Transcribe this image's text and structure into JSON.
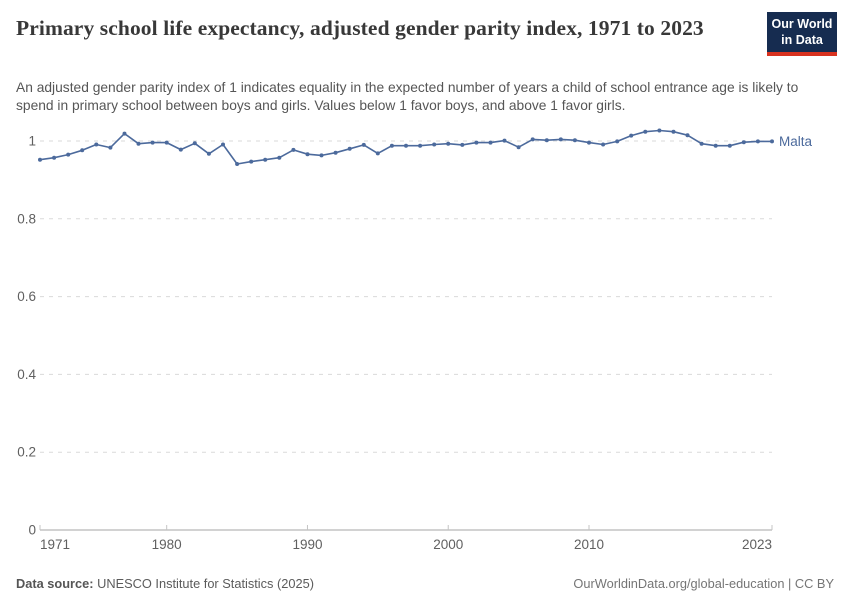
{
  "header": {
    "title": "Primary school life expectancy, adjusted gender parity index, 1971 to 2023",
    "subtitle": "An adjusted gender parity index of 1 indicates equality in the expected number of years a child of school entrance age is likely to spend in primary school between boys and girls. Values below 1 favor boys, and above 1 favor girls.",
    "logo": {
      "line1": "Our World",
      "line2": "in Data"
    }
  },
  "footer": {
    "source_label": "Data source:",
    "source_text": " UNESCO Institute for Statistics (2025)",
    "credit": "OurWorldinData.org/global-education | CC BY"
  },
  "colors": {
    "line": "#4c6a9c",
    "gridline": "#dadada",
    "axis": "#a6a6a6",
    "tick": "#c4c4c4",
    "logo_bg": "#162c50",
    "logo_bar": "#d8321f"
  },
  "chart_data": {
    "type": "line",
    "title": "Primary school life expectancy, adjusted gender parity index, 1971 to 2023",
    "xlabel": "",
    "ylabel": "",
    "x_start": 1971,
    "x_end": 2023,
    "xticks": [
      1971,
      1980,
      1990,
      2000,
      2010,
      2023
    ],
    "yticks": [
      0,
      0.2,
      0.4,
      0.6,
      0.8,
      1
    ],
    "ytick_labels": [
      "0",
      "0.2",
      "0.4",
      "0.6",
      "0.8",
      "1"
    ],
    "ylim": [
      0,
      1.05
    ],
    "grid": "dashed horizontal",
    "legend_position": "end-of-line label",
    "series": [
      {
        "name": "Malta",
        "color": "#4c6a9c",
        "years": [
          1971,
          1972,
          1973,
          1974,
          1975,
          1976,
          1977,
          1978,
          1979,
          1980,
          1981,
          1982,
          1983,
          1984,
          1985,
          1986,
          1987,
          1988,
          1989,
          1990,
          1991,
          1992,
          1993,
          1994,
          1995,
          1996,
          1997,
          1998,
          1999,
          2000,
          2001,
          2002,
          2003,
          2004,
          2005,
          2006,
          2007,
          2008,
          2009,
          2010,
          2011,
          2012,
          2013,
          2014,
          2015,
          2016,
          2017,
          2018,
          2019,
          2020,
          2021,
          2022,
          2023
        ],
        "values": [
          0.952,
          0.957,
          0.965,
          0.976,
          0.991,
          0.983,
          1.019,
          0.993,
          0.996,
          0.996,
          0.978,
          0.994,
          0.967,
          0.991,
          0.941,
          0.947,
          0.952,
          0.957,
          0.977,
          0.966,
          0.963,
          0.97,
          0.98,
          0.99,
          0.968,
          0.988,
          0.988,
          0.988,
          0.991,
          0.993,
          0.99,
          0.996,
          0.996,
          1.001,
          0.984,
          1.004,
          1.002,
          1.004,
          1.002,
          0.996,
          0.991,
          0.999,
          1.014,
          1.024,
          1.027,
          1.024,
          1.015,
          0.993,
          0.988,
          0.988,
          0.997,
          0.999,
          0.999
        ]
      }
    ]
  }
}
